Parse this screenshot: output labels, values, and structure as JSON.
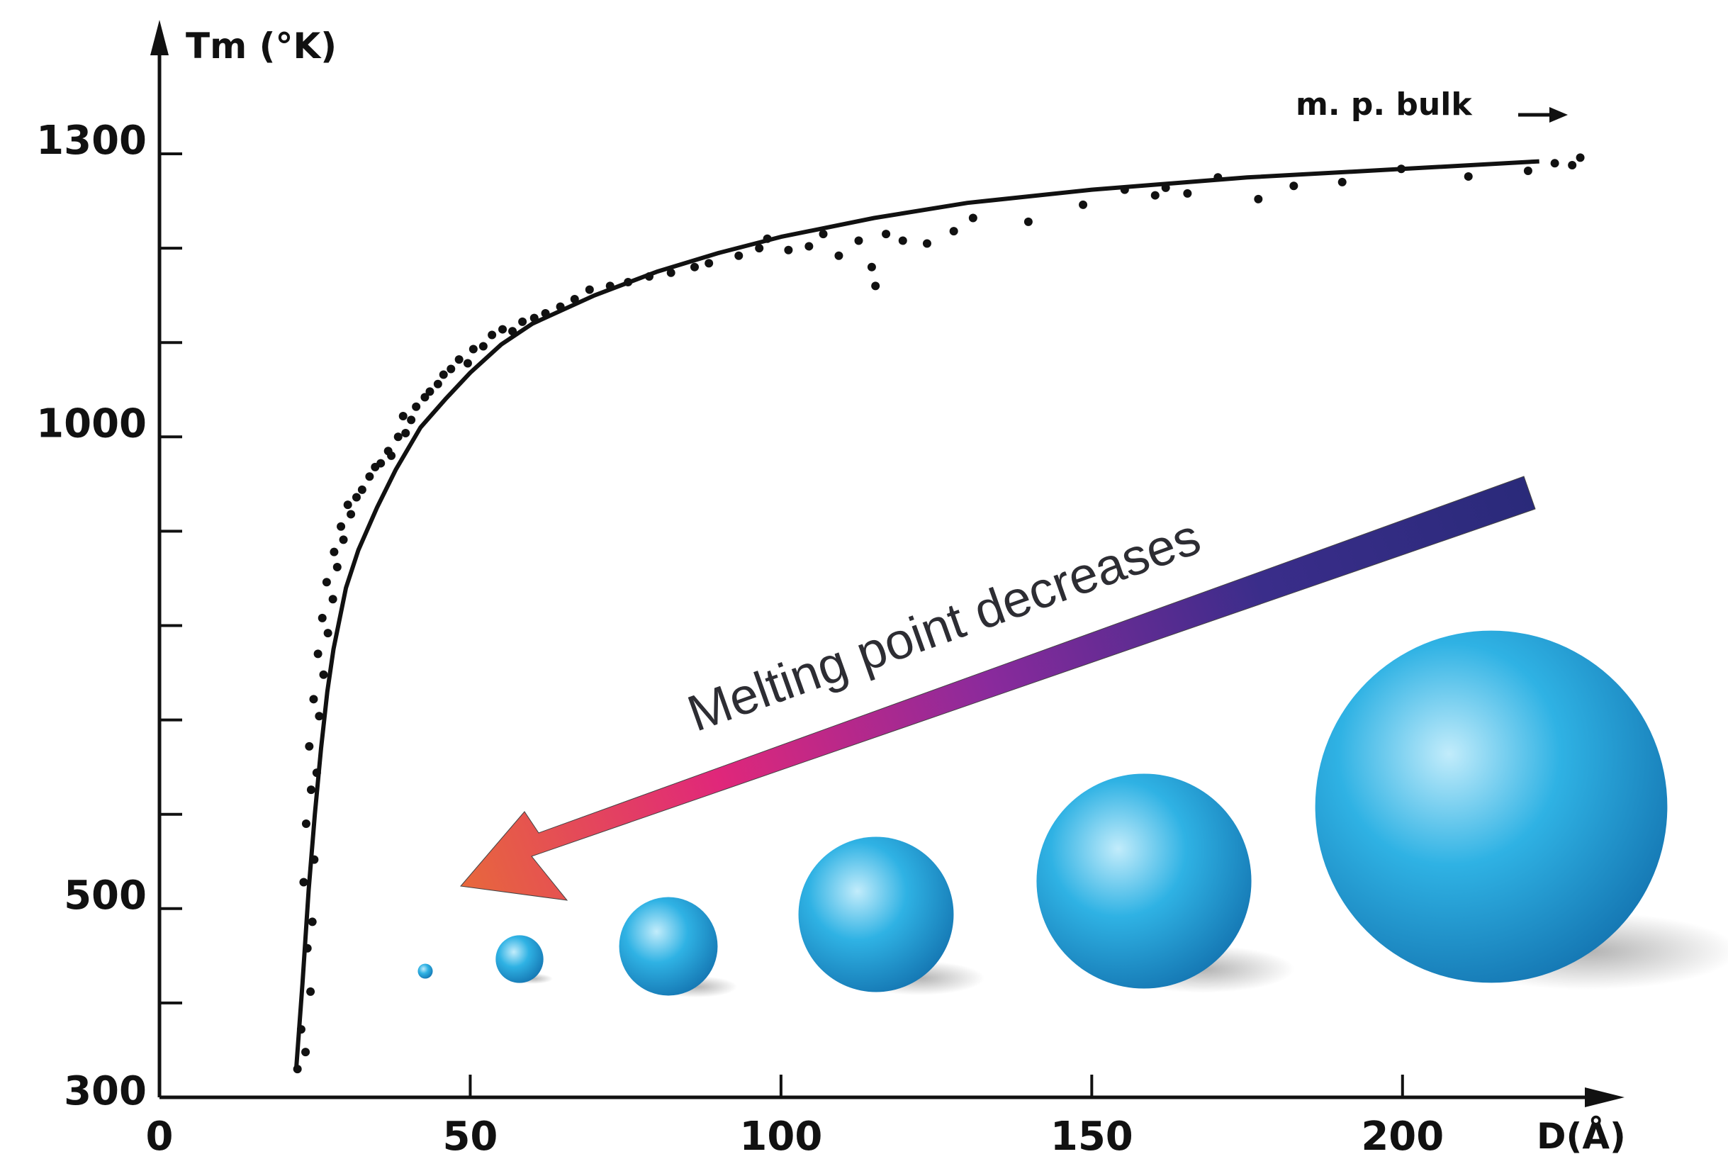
{
  "chart_data": {
    "type": "scatter",
    "xlabel": "D(Å)",
    "ylabel": "Tm (°K)",
    "xlim": [
      0,
      230
    ],
    "ylim": [
      300,
      1380
    ],
    "x_ticks": [
      0,
      50,
      100,
      150,
      200
    ],
    "y_tick_labels": [
      300,
      500,
      1000,
      1300
    ],
    "y_minor_ticks": [
      400,
      600,
      700,
      800,
      900,
      1100,
      1200
    ],
    "grid": false,
    "bulk_annotation": "m. p. bulk",
    "arrow_label": "Melting point decreases",
    "fit_curve": {
      "x": [
        22,
        23,
        24,
        25,
        26,
        27,
        28,
        30,
        32,
        35,
        38,
        42,
        46,
        50,
        55,
        60,
        70,
        80,
        90,
        100,
        115,
        130,
        150,
        175,
        200,
        222
      ],
      "y": [
        330,
        420,
        520,
        600,
        670,
        730,
        775,
        840,
        880,
        925,
        965,
        1010,
        1040,
        1068,
        1098,
        1120,
        1150,
        1175,
        1195,
        1212,
        1232,
        1248,
        1262,
        1275,
        1284,
        1292
      ]
    },
    "points": {
      "x": [
        22.2,
        22.8,
        23.5,
        24.3,
        23.8,
        24.6,
        23.2,
        24.9,
        23.6,
        24.4,
        25.3,
        24.1,
        25.7,
        24.8,
        26.4,
        25.5,
        27.1,
        26.2,
        27.9,
        26.9,
        28.6,
        28.1,
        29.6,
        29.2,
        30.8,
        30.3,
        31.7,
        32.6,
        33.8,
        34.7,
        35.6,
        36.8,
        37.3,
        38.4,
        39.6,
        39.2,
        40.5,
        41.3,
        42.7,
        43.5,
        44.8,
        45.7,
        46.9,
        48.2,
        49.6,
        50.5,
        52.1,
        53.5,
        55.2,
        56.8,
        58.4,
        60.3,
        62.1,
        64.5,
        66.8,
        69.2,
        72.5,
        75.4,
        78.8,
        82.3,
        86.1,
        88.4,
        93.2,
        96.5,
        97.8,
        101.2,
        104.5,
        106.8,
        109.3,
        112.5,
        114.6,
        115.2,
        116.9,
        119.6,
        123.5,
        127.8,
        130.9,
        139.8,
        148.6,
        155.3,
        160.2,
        161.9,
        165.4,
        170.3,
        176.8,
        182.5,
        190.3,
        199.8,
        210.6,
        220.2,
        224.5,
        227.3,
        228.6
      ],
      "y": [
        330,
        372,
        348,
        412,
        458,
        486,
        528,
        552,
        590,
        626,
        644,
        672,
        704,
        722,
        748,
        770,
        792,
        808,
        828,
        846,
        862,
        878,
        891,
        905,
        918,
        928,
        936,
        944,
        958,
        968,
        972,
        985,
        980,
        1000,
        1004,
        1022,
        1018,
        1032,
        1042,
        1048,
        1056,
        1066,
        1072,
        1082,
        1078,
        1093,
        1096,
        1108,
        1114,
        1112,
        1122,
        1126,
        1131,
        1138,
        1146,
        1156,
        1160,
        1164,
        1170,
        1174,
        1180,
        1184,
        1192,
        1200,
        1210,
        1198,
        1202,
        1215,
        1192,
        1208,
        1180,
        1160,
        1215,
        1208,
        1205,
        1218,
        1232,
        1228,
        1246,
        1262,
        1256,
        1264,
        1258,
        1275,
        1252,
        1266,
        1270,
        1284,
        1276,
        1282,
        1290,
        1288,
        1296
      ]
    },
    "spheres": {
      "diameters": [
        5,
        16,
        33,
        52,
        72,
        118
      ],
      "colors": [
        "#c2ecfb",
        "#2fb2e4",
        "#1577b3"
      ]
    },
    "arrow_gradient": [
      "#e86a3a",
      "#e0277a",
      "#8a2a9c",
      "#3a2d8a",
      "#2a2a7a"
    ]
  }
}
